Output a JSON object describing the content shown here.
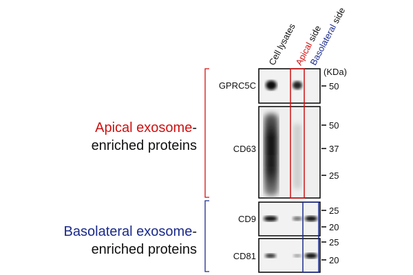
{
  "columns": [
    {
      "text": "Cell lysates"
    },
    {
      "accent": "Apical",
      "text": "side"
    },
    {
      "accent": "Basolateral",
      "text": "side"
    }
  ],
  "unit": "(KDa)",
  "groups": [
    {
      "accent": "Apical exosome",
      "suffix": "-",
      "line2": "enriched proteins"
    },
    {
      "accent": "Basolateral exosome",
      "suffix": "-",
      "line2": "enriched proteins"
    }
  ],
  "panels": [
    {
      "label": "GPRC5C",
      "markers": [
        50
      ]
    },
    {
      "label": "CD63",
      "markers": [
        50,
        37,
        25
      ]
    },
    {
      "label": "CD9",
      "markers": [
        25,
        20
      ]
    },
    {
      "label": "CD81",
      "markers": [
        25,
        20
      ]
    }
  ]
}
